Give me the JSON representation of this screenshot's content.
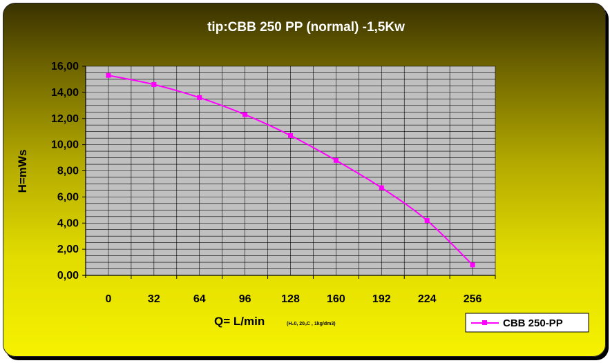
{
  "chart_data": {
    "type": "line",
    "title": "tip:CBB 250 PP (normal)  -1,5Kw",
    "xlabel": "Q= L/min",
    "xlabel_note": "(H₂0, 20ₒC , 1kg/dm3)",
    "ylabel": "H=mWs",
    "categories": [
      "0",
      "32",
      "64",
      "96",
      "128",
      "160",
      "192",
      "224",
      "256"
    ],
    "y_ticks": [
      "0,00",
      "2,00",
      "4,00",
      "6,00",
      "8,00",
      "10,00",
      "12,00",
      "14,00",
      "16,00"
    ],
    "ylim": [
      0,
      16
    ],
    "grid": true,
    "legend_position": "bottom-right",
    "series": [
      {
        "name": "CBB 250-PP",
        "values": [
          15.3,
          14.6,
          13.6,
          12.3,
          10.7,
          8.8,
          6.7,
          4.2,
          0.8
        ]
      }
    ],
    "colors": {
      "series": "#ff00ff",
      "plot_background": "#c0c0c0",
      "grid": "#000000",
      "title": "#ffffff"
    }
  }
}
